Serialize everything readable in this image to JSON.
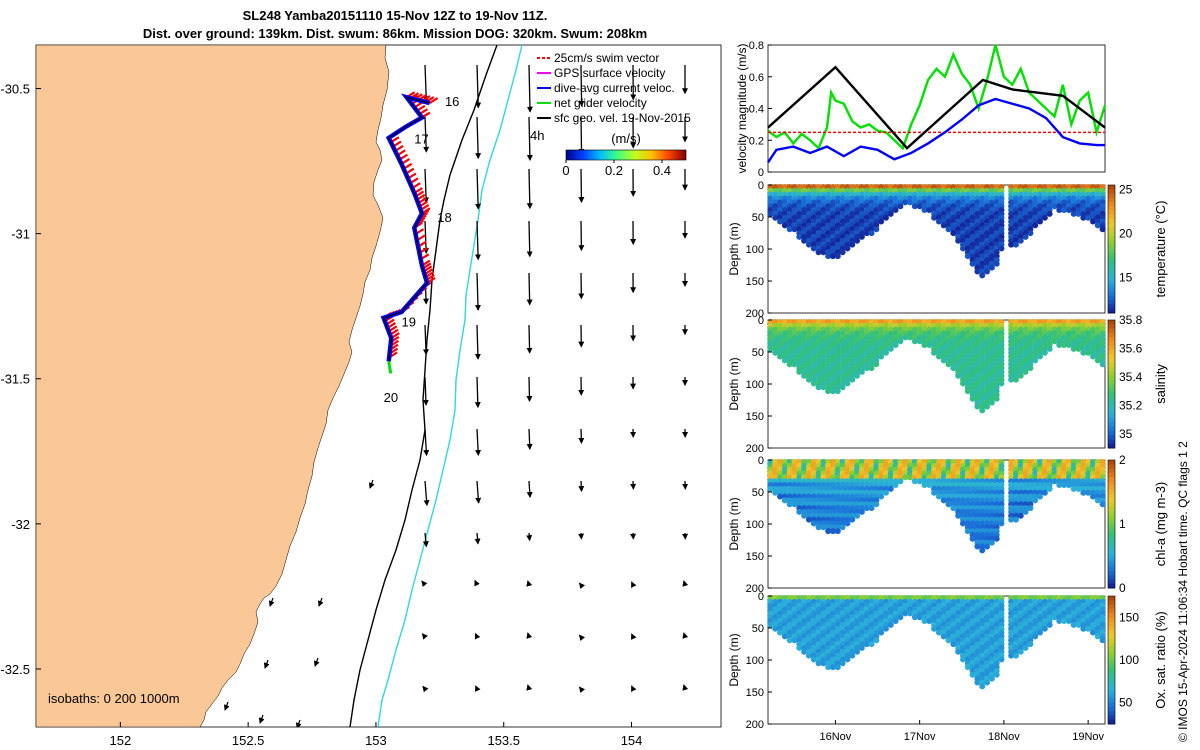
{
  "title_lines": [
    "SL248 Yamba20151110 15-Nov 12Z to 19-Nov 11Z.",
    "Dist. over ground: 139km. Dist. swum: 86km. Mission DOG: 320km. Swum: 208km"
  ],
  "side_note": "© IMOS 15-Apr-2024 11:06:34 Hobart time. QC flags 1  2",
  "colors": {
    "land": "#f9c896",
    "swim_vector": "#ff0000",
    "gps_velocity": "#ff00ff",
    "dive_avg": "#0000ff",
    "net_glider": "#00e000",
    "geo_vel": "#000000",
    "isobath_200": "#000000",
    "isobath_1000": "#30d8d8"
  },
  "chart_data": [
    {
      "type": "map",
      "xticks": [
        "152",
        "152.5",
        "153",
        "153.5",
        "154"
      ],
      "yticks": [
        "-30.5",
        "-31",
        "-31.5",
        "-32",
        "-32.5"
      ],
      "xlim": [
        151.67,
        154.35
      ],
      "ylim": [
        -32.7,
        -30.35
      ],
      "legend": [
        {
          "label": "25cm/s swim vector",
          "color": "#ff0000"
        },
        {
          "label": "GPS surface velocity",
          "color": "#ff00ff"
        },
        {
          "label": "dive-avg current veloc.",
          "color": "#0000ff"
        },
        {
          "label": "net glider velocity",
          "color": "#00e000"
        },
        {
          "label": "sfc geo. vel. 19-Nov-2015",
          "color": "#000000"
        }
      ],
      "colorbar": {
        "title": "(m/s)",
        "ticks": [
          "0",
          "0.2",
          "0.4"
        ],
        "range": [
          0,
          0.5
        ]
      },
      "day_labels": [
        {
          "text": "16",
          "lon": 153.27,
          "lat": -30.56
        },
        {
          "text": "17",
          "lon": 153.15,
          "lat": -30.69
        },
        {
          "text": "18",
          "lon": 153.24,
          "lat": -30.96
        },
        {
          "text": "19",
          "lon": 153.1,
          "lat": -31.32
        },
        {
          "text": "20",
          "lon": 153.03,
          "lat": -31.58
        }
      ],
      "annotation": "4h",
      "isobath_label": "isobaths: 0   200  1000m",
      "glider_track": [
        [
          153.21,
          -30.55
        ],
        [
          153.12,
          -30.53
        ],
        [
          153.18,
          -30.6
        ],
        [
          153.12,
          -30.63
        ],
        [
          153.05,
          -30.67
        ],
        [
          153.1,
          -30.76
        ],
        [
          153.15,
          -30.86
        ],
        [
          153.18,
          -30.93
        ],
        [
          153.15,
          -30.98
        ],
        [
          153.18,
          -31.11
        ],
        [
          153.2,
          -31.17
        ],
        [
          153.1,
          -31.27
        ],
        [
          153.03,
          -31.29
        ],
        [
          153.06,
          -31.36
        ],
        [
          153.05,
          -31.44
        ]
      ]
    },
    {
      "type": "line",
      "ylabel": "velocity magnitude (m/s)",
      "ylim": [
        0,
        0.8
      ],
      "yticks": [
        "0",
        "0.2",
        "0.4",
        "0.6",
        "0.8"
      ],
      "xlim": [
        15.5,
        19.5
      ],
      "series": [
        {
          "name": "net glider velocity",
          "color": "#00e000",
          "x": [
            15.5,
            15.6,
            15.7,
            15.8,
            15.9,
            16.0,
            16.1,
            16.2,
            16.25,
            16.3,
            16.4,
            16.5,
            16.6,
            16.7,
            16.8,
            16.9,
            17.0,
            17.1,
            17.2,
            17.3,
            17.4,
            17.5,
            17.6,
            17.7,
            17.8,
            17.9,
            18.0,
            18.1,
            18.2,
            18.3,
            18.4,
            18.5,
            18.6,
            18.7,
            18.8,
            18.9,
            19.0,
            19.1,
            19.2,
            19.3,
            19.4,
            19.5
          ],
          "y": [
            0.26,
            0.22,
            0.25,
            0.18,
            0.24,
            0.2,
            0.15,
            0.28,
            0.5,
            0.45,
            0.43,
            0.32,
            0.28,
            0.3,
            0.26,
            0.25,
            0.2,
            0.15,
            0.3,
            0.42,
            0.58,
            0.65,
            0.6,
            0.74,
            0.62,
            0.55,
            0.4,
            0.58,
            0.8,
            0.6,
            0.55,
            0.65,
            0.5,
            0.45,
            0.4,
            0.35,
            0.55,
            0.3,
            0.45,
            0.5,
            0.25,
            0.42
          ]
        },
        {
          "name": "25cm/s swim vector",
          "color": "#ff0000",
          "x": [
            15.5,
            16.0,
            16.5,
            17.0,
            17.5,
            18.0,
            18.5,
            19.0,
            19.5
          ],
          "y": [
            0.25,
            0.25,
            0.25,
            0.25,
            0.25,
            0.25,
            0.25,
            0.25,
            0.25
          ]
        },
        {
          "name": "dive-avg current veloc.",
          "color": "#0000ff",
          "x": [
            15.5,
            15.6,
            15.8,
            16.0,
            16.2,
            16.4,
            16.6,
            16.8,
            17.0,
            17.2,
            17.4,
            17.6,
            17.8,
            18.0,
            18.1,
            18.2,
            18.4,
            18.6,
            18.8,
            19.0,
            19.2,
            19.4,
            19.5
          ],
          "y": [
            0.06,
            0.14,
            0.16,
            0.12,
            0.16,
            0.1,
            0.16,
            0.14,
            0.08,
            0.12,
            0.18,
            0.25,
            0.33,
            0.42,
            0.44,
            0.46,
            0.43,
            0.4,
            0.34,
            0.22,
            0.18,
            0.17,
            0.17
          ]
        },
        {
          "name": "GPS surface velocity",
          "color": "#000000",
          "x": [
            15.5,
            16.3,
            17.15,
            18.05,
            18.4,
            19.0,
            19.5
          ],
          "y": [
            0.28,
            0.66,
            0.15,
            0.58,
            0.52,
            0.48,
            0.28
          ]
        }
      ]
    },
    {
      "type": "heatmap",
      "ylabel": "Depth (m)",
      "colorbar_label": "temperature (°C)",
      "colorbar_ticks": [
        "15",
        "20",
        "25"
      ],
      "range": [
        11,
        25.5
      ],
      "colormap": [
        "#12128a",
        "#1a6fd9",
        "#2bb3d8",
        "#32c07a",
        "#8fd030",
        "#f0c82a",
        "#f08a1e",
        "#b0480c"
      ],
      "ylim": [
        0,
        200
      ],
      "yticks": [
        "0",
        "50",
        "100",
        "150",
        "200"
      ],
      "surface_value": 24.5,
      "deep_value": 12,
      "gradient": 0.11
    },
    {
      "type": "heatmap",
      "ylabel": "Depth (m)",
      "colorbar_label": "salinity",
      "colorbar_ticks": [
        "35",
        "35.2",
        "35.4",
        "35.6",
        "35.8"
      ],
      "range": [
        34.9,
        35.8
      ],
      "colormap": [
        "#12128a",
        "#1a6fd9",
        "#2bb3d8",
        "#32c07a",
        "#8fd030",
        "#f0c82a",
        "#f08a1e",
        "#b0480c"
      ],
      "ylim": [
        0,
        200
      ],
      "yticks": [
        "0",
        "50",
        "100",
        "150",
        "200"
      ],
      "surface_value": 35.62,
      "deep_value": 35.25,
      "gradient": 0.004
    },
    {
      "type": "heatmap",
      "ylabel": "Depth (m)",
      "colorbar_label": "chl-a (mg m-3)",
      "colorbar_ticks": [
        "0",
        "1",
        "2"
      ],
      "range": [
        0,
        2
      ],
      "colormap": [
        "#12128a",
        "#1a6fd9",
        "#2bb3d8",
        "#32c07a",
        "#8fd030",
        "#f0c82a",
        "#f08a1e",
        "#b0480c"
      ],
      "ylim": [
        0,
        200
      ],
      "yticks": [
        "0",
        "50",
        "100",
        "150",
        "200"
      ],
      "surface_value": 1.6,
      "deep_value": 0.1,
      "gradient": 0.03
    },
    {
      "type": "heatmap",
      "ylabel": "Depth (m)",
      "colorbar_label": "Ox. sat. ratio (%)",
      "colorbar_ticks": [
        "50",
        "100",
        "150"
      ],
      "range": [
        25,
        175
      ],
      "colormap": [
        "#12128a",
        "#1a6fd9",
        "#2bb3d8",
        "#32c07a",
        "#8fd030",
        "#f0c82a",
        "#f08a1e",
        "#b0480c"
      ],
      "ylim": [
        0,
        200
      ],
      "yticks": [
        "0",
        "50",
        "100",
        "150",
        "200"
      ],
      "surface_value": 105,
      "deep_value": 62,
      "gradient": 0.9,
      "xticks": [
        "16Nov",
        "17Nov",
        "18Nov",
        "19Nov"
      ]
    }
  ]
}
